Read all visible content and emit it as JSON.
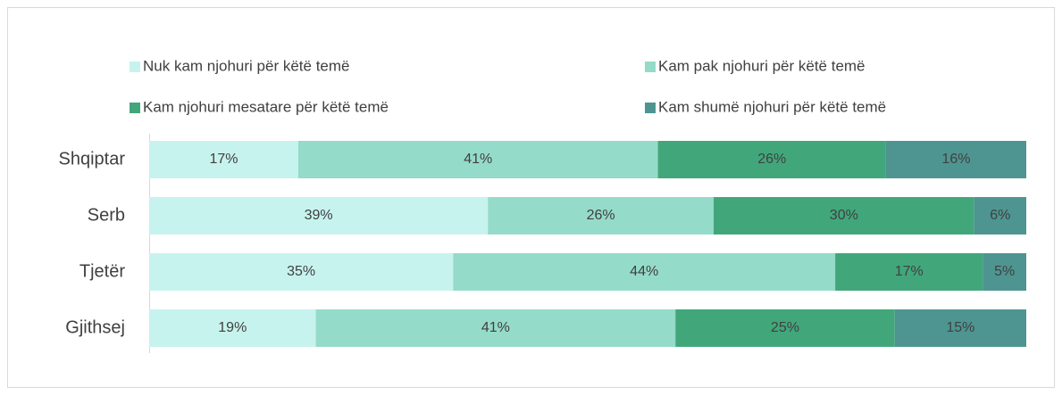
{
  "chart_data": {
    "type": "bar",
    "orientation": "horizontal",
    "stacked": "percent",
    "categories": [
      "Shqiptar",
      "Serb",
      "Tjetër",
      "Gjithsej"
    ],
    "series": [
      {
        "name": "Nuk kam njohuri për këtë temë",
        "color": "#c7f3ee",
        "values": [
          17,
          39,
          35,
          19
        ],
        "value_labels": [
          "17%",
          "39%",
          "35%",
          "19%"
        ]
      },
      {
        "name": "Kam pak njohuri për këtë temë",
        "color": "#95dbc9",
        "values": [
          41,
          26,
          44,
          41
        ],
        "value_labels": [
          "41%",
          "26%",
          "44%",
          "41%"
        ]
      },
      {
        "name": "Kam njohuri mesatare për këtë temë",
        "color": "#41a77b",
        "values": [
          26,
          30,
          17,
          25
        ],
        "value_labels": [
          "26%",
          "30%",
          "17%",
          "25%"
        ]
      },
      {
        "name": "Kam shumë njohuri për këtë temë",
        "color": "#4e9591",
        "values": [
          16,
          6,
          5,
          15
        ],
        "value_labels": [
          "16%",
          "6%",
          "5%",
          "15%"
        ]
      }
    ]
  }
}
